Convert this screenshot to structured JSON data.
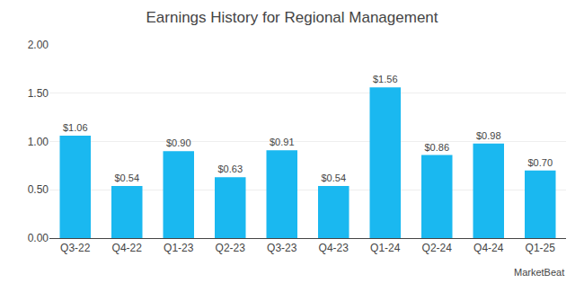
{
  "chart_data": {
    "type": "bar",
    "title": "Earnings History for Regional Management",
    "categories": [
      "Q3-22",
      "Q4-22",
      "Q1-23",
      "Q2-23",
      "Q3-23",
      "Q4-23",
      "Q1-24",
      "Q2-24",
      "Q4-24",
      "Q1-25"
    ],
    "values": [
      1.06,
      0.54,
      0.9,
      0.63,
      0.91,
      0.54,
      1.56,
      0.86,
      0.98,
      0.7
    ],
    "value_labels": [
      "$1.06",
      "$0.54",
      "$0.90",
      "$0.63",
      "$0.91",
      "$0.54",
      "$1.56",
      "$0.86",
      "$0.98",
      "$0.70"
    ],
    "data_labels": true,
    "color": "#1ab8f0",
    "ylim": [
      0,
      2.0
    ],
    "yticks": [
      {
        "value": 0.0,
        "label": "0.00"
      },
      {
        "value": 0.5,
        "label": "0.50"
      },
      {
        "value": 1.0,
        "label": "1.00"
      },
      {
        "value": 1.5,
        "label": "1.50"
      },
      {
        "value": 2.0,
        "label": "2.00"
      }
    ],
    "grid": true,
    "annotations": [
      "MarketBeat"
    ]
  }
}
